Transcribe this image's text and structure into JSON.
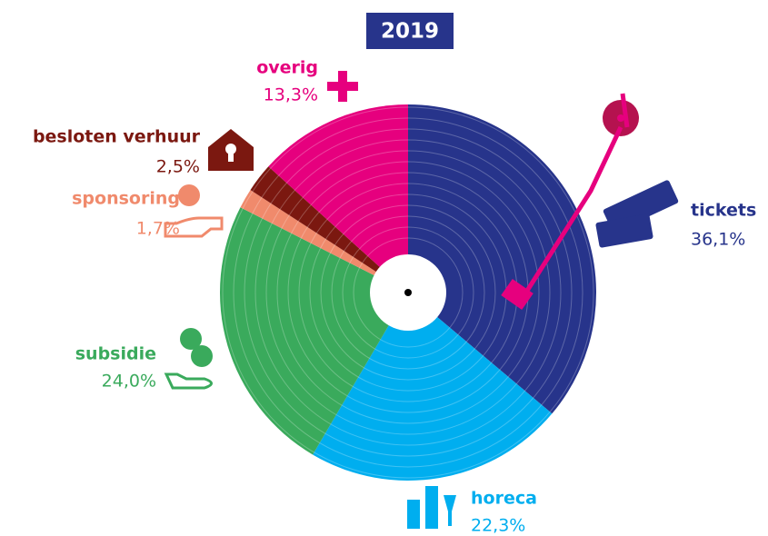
{
  "chart_data": {
    "type": "pie",
    "title": "2019",
    "categories": [
      "tickets",
      "horeca",
      "subsidie",
      "sponsoring",
      "besloten verhuur",
      "overig"
    ],
    "values": [
      36.1,
      22.3,
      24.0,
      1.7,
      2.5,
      13.3
    ],
    "value_labels": [
      "36,1%",
      "22,3%",
      "24,0%",
      "1,7%",
      "2,5%",
      "13,3%"
    ],
    "colors": [
      "#27348b",
      "#00aeef",
      "#3aaa5c",
      "#f08a6c",
      "#7b1810",
      "#e6007e"
    ]
  }
}
